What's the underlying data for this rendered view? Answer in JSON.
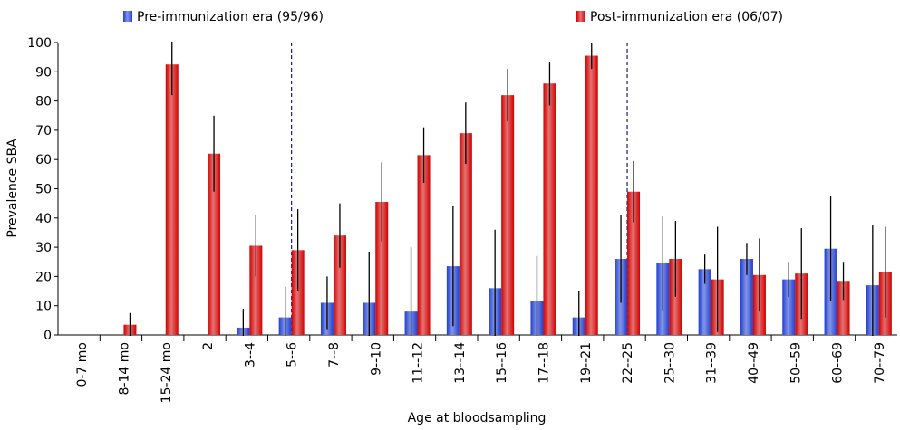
{
  "chart_data": {
    "type": "bar",
    "y_label": "Prevalence SBA",
    "x_label": "Age at bloodsampling",
    "categories": [
      "0-7 mo",
      "8-14 mo",
      "15-24 mo",
      "2",
      "3--4",
      "5--6",
      "7--8",
      "9--10",
      "11--12",
      "13--14",
      "15--16",
      "17--18",
      "19--21",
      "22--25",
      "25--30",
      "31--39",
      "40--49",
      "50--59",
      "60--69",
      "70--79"
    ],
    "series": [
      {
        "name": "Pre-immunization era (95/96)",
        "color": "#1f3fd0",
        "values": [
          0,
          0,
          0,
          0,
          2.5,
          6,
          11,
          11,
          8,
          23.5,
          16,
          11.5,
          6,
          26,
          24.5,
          22.5,
          26,
          19,
          29.5,
          17
        ],
        "errors": [
          null,
          null,
          null,
          null,
          6.5,
          10.5,
          9,
          17.5,
          22,
          20.5,
          20,
          15.5,
          9,
          15,
          16,
          5,
          5.5,
          6,
          18,
          20.5
        ]
      },
      {
        "name": "Post-immunization era (06/07)",
        "color": "#d00000",
        "values": [
          0,
          3.5,
          92.5,
          62,
          30.5,
          29,
          34,
          45.5,
          61.5,
          69,
          82,
          86,
          95.5,
          49,
          26,
          19,
          20.5,
          21,
          18.5,
          21.5
        ],
        "errors": [
          null,
          4,
          10.5,
          13,
          10.5,
          14,
          11,
          13.5,
          9.5,
          10.5,
          9,
          7.5,
          4.5,
          10.5,
          13,
          18,
          12.5,
          15.5,
          6.5,
          15.5
        ]
      }
    ],
    "ylim": [
      0,
      100
    ],
    "yticks": [
      0,
      10,
      20,
      30,
      40,
      50,
      60,
      70,
      80,
      90,
      100
    ],
    "dashed_lines_at": [
      "5--6",
      "22--25"
    ],
    "legend": "top"
  }
}
